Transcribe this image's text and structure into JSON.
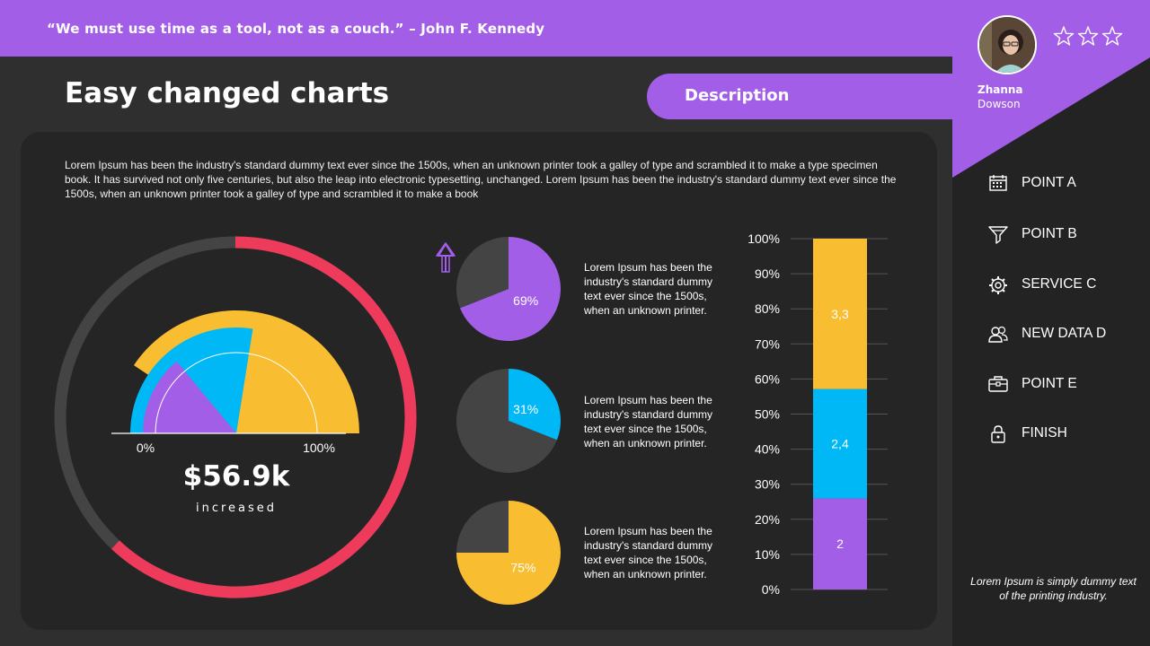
{
  "header": {
    "quote": "“We must use time as a tool, not as a couch.”  – John F. Kennedy",
    "title": "Easy changed charts",
    "description_label": "Description"
  },
  "body_text": "Lorem Ipsum has been the industry's standard dummy text ever since the 1500s, when an unknown printer took a galley of type and scrambled it to make a type specimen book. It has survived not only five centuries, but also the leap into electronic typesetting, unchanged. Lorem Ipsum has been the industry's standard dummy text ever since the 1500s, when an unknown printer took a galley of type and scrambled it to make a book",
  "colors": {
    "accent": "#a35ee8",
    "cyan": "#00b8f5",
    "yellow": "#f8bd30",
    "red": "#ee3b5c",
    "track": "#444444",
    "panel": "#252525"
  },
  "sidebar": {
    "user_first": "Zhanna",
    "user_last": "Dowson",
    "rating_max": 3,
    "items": [
      {
        "label": "POINT A",
        "icon": "calendar-icon"
      },
      {
        "label": "POINT B",
        "icon": "funnel-icon"
      },
      {
        "label": "SERVICE C",
        "icon": "gear-icon"
      },
      {
        "label": "NEW DATA D",
        "icon": "users-icon"
      },
      {
        "label": "POINT E",
        "icon": "briefcase-icon"
      },
      {
        "label": "FINISH",
        "icon": "lock-icon"
      }
    ],
    "note": "Lorem Ipsum is simply dummy text of the printing industry."
  },
  "gauge": {
    "value": "$56.9k",
    "subtitle": "increased"
  },
  "pie_descriptions": [
    "Lorem Ipsum has been the industry's standard dummy text ever since the 1500s, when an unknown printer.",
    "Lorem Ipsum has been the industry's standard dummy text ever since the 1500s, when an unknown printer.",
    "Lorem Ipsum has been the industry's standard dummy text ever since the 1500s, when an unknown printer."
  ],
  "chart_data": [
    {
      "type": "donut",
      "value": 0.62,
      "remainder": 0.38,
      "colors": [
        "#ee3b5c",
        "#444444"
      ]
    },
    {
      "type": "radial-gauge",
      "xlim_labels": [
        "0%",
        "100%"
      ],
      "arcs": [
        {
          "color": "#f8bd30",
          "value": 0.66
        },
        {
          "color": "#00b8f5",
          "value": 0.55
        },
        {
          "color": "#a35ee8",
          "value": 0.28
        }
      ]
    },
    {
      "type": "pie",
      "slices": [
        {
          "label": "69%",
          "value": 69,
          "color": "#a35ee8"
        },
        {
          "value": 31,
          "color": "#444444"
        }
      ]
    },
    {
      "type": "pie",
      "slices": [
        {
          "label": "31%",
          "value": 31,
          "color": "#00b8f5"
        },
        {
          "value": 69,
          "color": "#444444"
        }
      ]
    },
    {
      "type": "pie",
      "slices": [
        {
          "label": "75%",
          "value": 75,
          "color": "#f8bd30"
        },
        {
          "value": 25,
          "color": "#444444"
        }
      ]
    },
    {
      "type": "bar",
      "stacked": true,
      "ylim": [
        0,
        100
      ],
      "yticks": [
        "0%",
        "10%",
        "20%",
        "30%",
        "40%",
        "50%",
        "60%",
        "70%",
        "80%",
        "90%",
        "100%"
      ],
      "grid": true,
      "series": [
        {
          "label": "2",
          "value": 2,
          "color": "#a35ee8"
        },
        {
          "label": "2,4",
          "value": 2.4,
          "color": "#00b8f5"
        },
        {
          "label": "3,3",
          "value": 3.3,
          "color": "#f8bd30"
        }
      ]
    }
  ]
}
